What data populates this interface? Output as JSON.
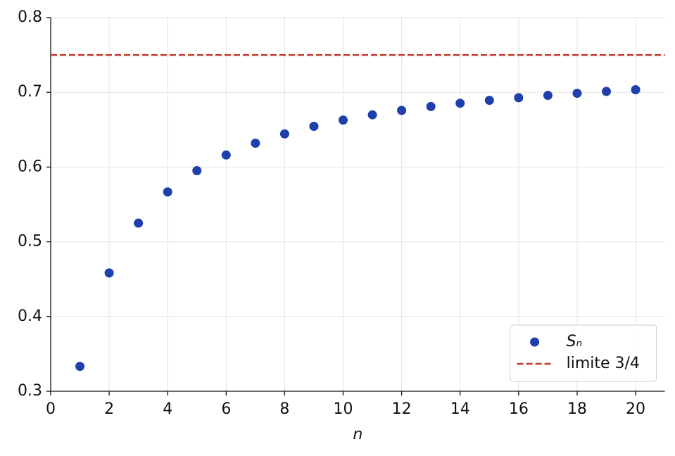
{
  "chart_data": {
    "type": "scatter",
    "x_label": "n",
    "x": [
      1,
      2,
      3,
      4,
      5,
      6,
      7,
      8,
      9,
      10,
      11,
      12,
      13,
      14,
      15,
      16,
      17,
      18,
      19,
      20
    ],
    "series": [
      {
        "name": "Sₙ",
        "color": "#1f3fad",
        "values": [
          0.3333,
          0.4583,
          0.525,
          0.5667,
          0.5952,
          0.6161,
          0.6319,
          0.6444,
          0.6545,
          0.6629,
          0.6699,
          0.6758,
          0.681,
          0.6854,
          0.6893,
          0.6928,
          0.6959,
          0.6987,
          0.7012,
          0.7035
        ]
      }
    ],
    "reference_lines": [
      {
        "name": "limite 3/4",
        "value": 0.75,
        "color": "#c0392b",
        "style": "dashed"
      }
    ],
    "xlim": [
      0,
      21
    ],
    "xticks": [
      0,
      2,
      4,
      6,
      8,
      10,
      12,
      14,
      16,
      18,
      20
    ],
    "ylim": [
      0.3,
      0.8
    ],
    "yticks": [
      0.3,
      0.4,
      0.5,
      0.6,
      0.7,
      0.8
    ],
    "grid": true,
    "legend": "lower right"
  }
}
